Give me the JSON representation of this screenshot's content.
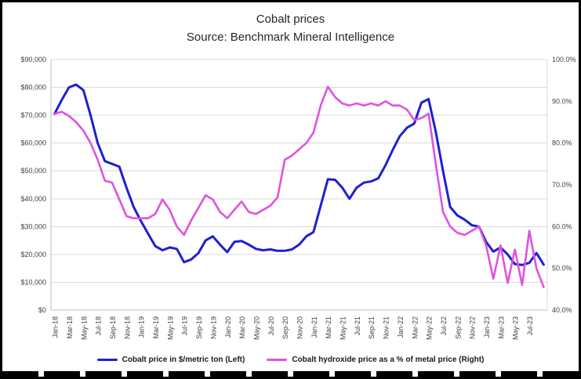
{
  "title": {
    "line1": "Cobalt prices",
    "line2": "Source: Benchmark Mineral Intelligence"
  },
  "legend": {
    "items": [
      {
        "label": "Cobalt price in $/metric ton (Left)",
        "color": "#1f1fd1"
      },
      {
        "label": "Cobalt hydroxide price as a % of metal price (Right)",
        "color": "#e052e0"
      }
    ]
  },
  "axes": {
    "left_labels": [
      "$90,000",
      "$80,000",
      "$70,000",
      "$60,000",
      "$50,000",
      "$40,000",
      "$30,000",
      "$20,000",
      "$10,000",
      "$0"
    ],
    "right_labels": [
      "100.0%",
      "90.0%",
      "80.0%",
      "70.0%",
      "60.0%",
      "50.0%",
      "40.0%"
    ],
    "x_labels": [
      "Jan-18",
      "Mar-18",
      "May-18",
      "Jul-18",
      "Sep-18",
      "Nov-18",
      "Jan-19",
      "Mar-19",
      "May-19",
      "Jul-19",
      "Sep-19",
      "Nov-19",
      "Jan-20",
      "Mar-20",
      "May-20",
      "Jul-20",
      "Sep-20",
      "Nov-20",
      "Jan-21",
      "Mar-21",
      "May-21",
      "Jul-21",
      "Sep-21",
      "Nov-21",
      "Jan-22",
      "Mar-22",
      "May-22",
      "Jul-22",
      "Sep-22",
      "Nov-22",
      "Jan-23",
      "Mar-23",
      "May-23",
      "Jul-23"
    ]
  },
  "chart_data": {
    "type": "line",
    "title": "Cobalt prices",
    "subtitle": "Source: Benchmark Mineral Intelligence",
    "grid": true,
    "legend_position": "bottom",
    "x_label_every": 2,
    "left_axis": {
      "min": 0,
      "max": 90000,
      "step": 10000,
      "format": "$#,##0"
    },
    "right_axis": {
      "min": 40,
      "max": 100,
      "step": 10,
      "format": "0.0%"
    },
    "x": [
      "Jan-18",
      "Feb-18",
      "Mar-18",
      "Apr-18",
      "May-18",
      "Jun-18",
      "Jul-18",
      "Aug-18",
      "Sep-18",
      "Oct-18",
      "Nov-18",
      "Dec-18",
      "Jan-19",
      "Feb-19",
      "Mar-19",
      "Apr-19",
      "May-19",
      "Jun-19",
      "Jul-19",
      "Aug-19",
      "Sep-19",
      "Oct-19",
      "Nov-19",
      "Dec-19",
      "Jan-20",
      "Feb-20",
      "Mar-20",
      "Apr-20",
      "May-20",
      "Jun-20",
      "Jul-20",
      "Aug-20",
      "Sep-20",
      "Oct-20",
      "Nov-20",
      "Dec-20",
      "Jan-21",
      "Feb-21",
      "Mar-21",
      "Apr-21",
      "May-21",
      "Jun-21",
      "Jul-21",
      "Aug-21",
      "Sep-21",
      "Oct-21",
      "Nov-21",
      "Dec-21",
      "Jan-22",
      "Feb-22",
      "Mar-22",
      "Apr-22",
      "May-22",
      "Jun-22",
      "Jul-22",
      "Aug-22",
      "Sep-22",
      "Oct-22",
      "Nov-22",
      "Dec-22",
      "Jan-23",
      "Feb-23",
      "Mar-23",
      "Apr-23",
      "May-23",
      "Jun-23",
      "Jul-23",
      "Aug-23",
      "Sep-23"
    ],
    "series": [
      {
        "name": "Cobalt price in $/metric ton (Left)",
        "axis": "left",
        "color": "#1f1fd1",
        "values": [
          70500,
          75500,
          80000,
          81000,
          79000,
          70000,
          60000,
          53500,
          52500,
          51500,
          44000,
          37000,
          32000,
          27500,
          23000,
          21500,
          22500,
          22000,
          17200,
          18200,
          20500,
          25000,
          26500,
          23500,
          20800,
          24500,
          24800,
          23500,
          22000,
          21500,
          21800,
          21300,
          21300,
          21800,
          23500,
          26500,
          28000,
          37500,
          47000,
          46800,
          44000,
          40000,
          44000,
          45800,
          46200,
          47300,
          52000,
          57500,
          62500,
          65500,
          67000,
          74500,
          75800,
          64000,
          50000,
          37000,
          34000,
          32500,
          30500,
          30000,
          24500,
          21000,
          22500,
          20000,
          16500,
          16200,
          17000,
          20500,
          16300
        ]
      },
      {
        "name": "Cobalt hydroxide price as a % of metal price (Right)",
        "axis": "right",
        "color": "#e052e0",
        "values": [
          87.0,
          87.5,
          86.5,
          85.0,
          83.0,
          80.0,
          76.0,
          71.0,
          70.5,
          66.5,
          62.5,
          62.0,
          62.0,
          62.0,
          63.0,
          66.5,
          64.0,
          60.0,
          58.0,
          61.5,
          64.5,
          67.5,
          66.5,
          63.5,
          62.0,
          64.0,
          66.0,
          63.5,
          63.0,
          64.0,
          65.0,
          67.0,
          76.0,
          77.0,
          78.5,
          80.0,
          82.5,
          89.0,
          93.5,
          91.0,
          89.5,
          89.0,
          89.5,
          89.0,
          89.5,
          89.0,
          90.0,
          89.0,
          89.0,
          88.0,
          85.5,
          86.0,
          87.0,
          75.0,
          63.5,
          60.0,
          58.5,
          58.0,
          59.0,
          60.0,
          55.5,
          47.5,
          55.5,
          46.5,
          54.5,
          46.0,
          59.0,
          50.0,
          45.5
        ]
      }
    ]
  }
}
